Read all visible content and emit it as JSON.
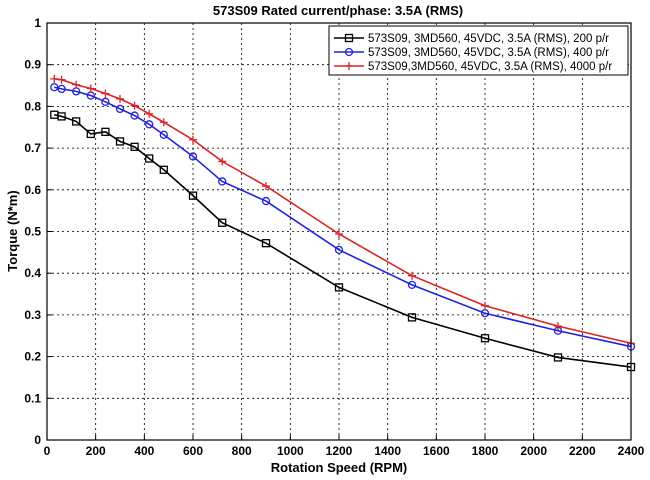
{
  "chart_data": {
    "type": "line",
    "title": "573S09 Rated current/phase: 3.5A (RMS)",
    "xlabel": "Rotation Speed (RPM)",
    "ylabel": "Torque (N*m)",
    "xlim": [
      0,
      2400
    ],
    "ylim": [
      0,
      1
    ],
    "xticks": [
      0,
      200,
      400,
      600,
      800,
      1000,
      1200,
      1400,
      1600,
      1800,
      2000,
      2200,
      2400
    ],
    "yticks": [
      0,
      0.1,
      0.2,
      0.3,
      0.4,
      0.5,
      0.6,
      0.7,
      0.8,
      0.9,
      1
    ],
    "ytick_labels": [
      "0",
      "0.1",
      "0.2",
      "0.3",
      "0.4",
      "0.5",
      "0.6",
      "0.7",
      "0.8",
      "0.9",
      "1"
    ],
    "grid": true,
    "legend_position": "top-right",
    "series": [
      {
        "name": "573S09, 3MD560, 45VDC, 3.5A (RMS), 200 p/r",
        "color": "#000000",
        "marker": "square",
        "x": [
          30,
          60,
          120,
          180,
          240,
          300,
          360,
          420,
          480,
          600,
          720,
          900,
          1200,
          1500,
          1800,
          2100,
          2400
        ],
        "y": [
          0.78,
          0.776,
          0.764,
          0.734,
          0.739,
          0.716,
          0.703,
          0.675,
          0.648,
          0.586,
          0.521,
          0.472,
          0.366,
          0.294,
          0.244,
          0.198,
          0.175
        ]
      },
      {
        "name": "573S09, 3MD560, 45VDC, 3.5A (RMS), 400 p/r",
        "color": "#2222dd",
        "marker": "circle",
        "x": [
          30,
          60,
          120,
          180,
          240,
          300,
          360,
          420,
          480,
          600,
          720,
          900,
          1200,
          1500,
          1800,
          2100,
          2400
        ],
        "y": [
          0.846,
          0.842,
          0.836,
          0.826,
          0.811,
          0.794,
          0.778,
          0.757,
          0.732,
          0.68,
          0.62,
          0.573,
          0.456,
          0.372,
          0.304,
          0.262,
          0.224
        ]
      },
      {
        "name": "573S09,3MD560, 45VDC, 3.5A (RMS), 4000 p/r",
        "color": "#dd2222",
        "marker": "plus",
        "x": [
          30,
          60,
          120,
          180,
          240,
          300,
          360,
          420,
          480,
          600,
          720,
          900,
          1200,
          1500,
          1800,
          2100,
          2400
        ],
        "y": [
          0.866,
          0.864,
          0.852,
          0.843,
          0.831,
          0.818,
          0.802,
          0.782,
          0.762,
          0.72,
          0.668,
          0.609,
          0.494,
          0.394,
          0.322,
          0.273,
          0.232
        ]
      }
    ]
  }
}
